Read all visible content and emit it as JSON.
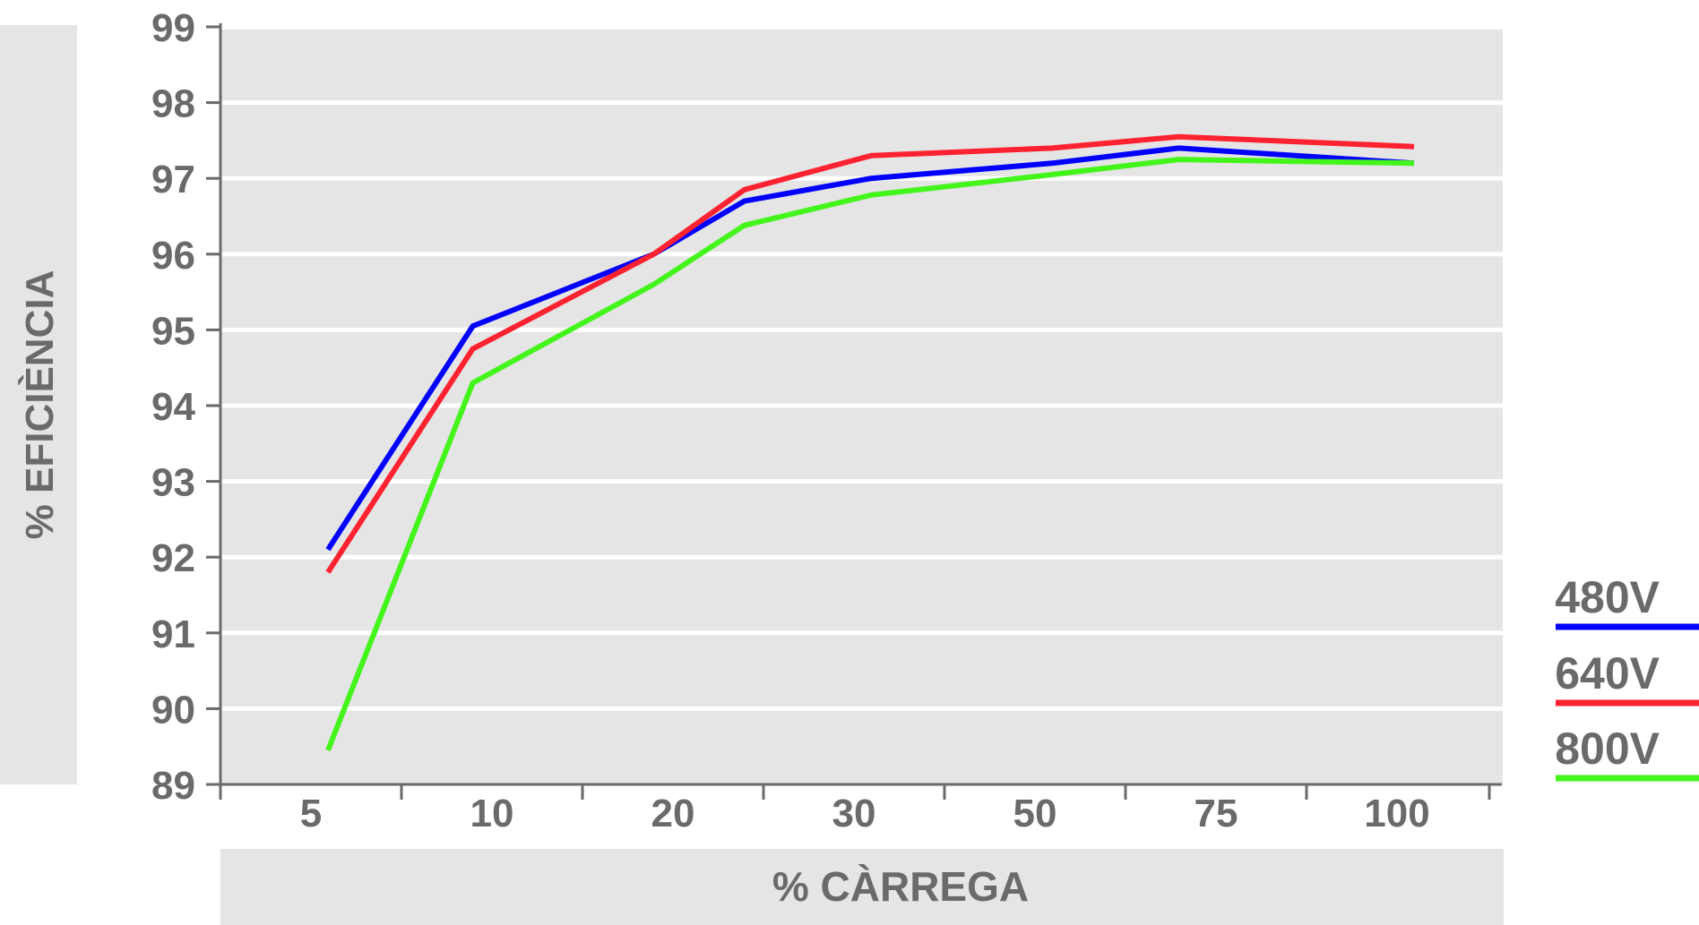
{
  "chart_data": {
    "type": "line",
    "xlabel": "% CÀRREGA",
    "ylabel": "% EFICIÈNCIA",
    "categories": [
      "5",
      "10",
      "20",
      "30",
      "50",
      "75",
      "100"
    ],
    "ylim": [
      89,
      99
    ],
    "yticks": [
      "89",
      "90",
      "91",
      "92",
      "93",
      "94",
      "95",
      "96",
      "97",
      "98",
      "99"
    ],
    "grid": true,
    "legend_position": "right",
    "colors": {
      "plot_background": "#e5e5e5",
      "grid": "#ffffff",
      "axis": "#6a6a6a",
      "text": "#6a6a6a"
    },
    "series": [
      {
        "name": "480V",
        "color": "#0000ff",
        "x": [
          0,
          0.8,
          1.8,
          2.3,
          3.0,
          4.0,
          4.7,
          6.0
        ],
        "values": [
          92.1,
          95.05,
          96.0,
          96.7,
          97.0,
          97.2,
          97.4,
          97.2
        ]
      },
      {
        "name": "640V",
        "color": "#ff2230",
        "x": [
          0,
          0.8,
          1.8,
          2.3,
          3.0,
          4.0,
          4.7,
          6.0
        ],
        "values": [
          91.8,
          94.75,
          96.0,
          96.85,
          97.3,
          97.4,
          97.55,
          97.42
        ]
      },
      {
        "name": "800V",
        "color": "#44f51c",
        "x": [
          0,
          0.8,
          1.8,
          2.3,
          3.0,
          4.0,
          4.7,
          6.0
        ],
        "values": [
          89.45,
          94.3,
          95.6,
          96.38,
          96.78,
          97.05,
          97.25,
          97.2
        ]
      }
    ]
  }
}
